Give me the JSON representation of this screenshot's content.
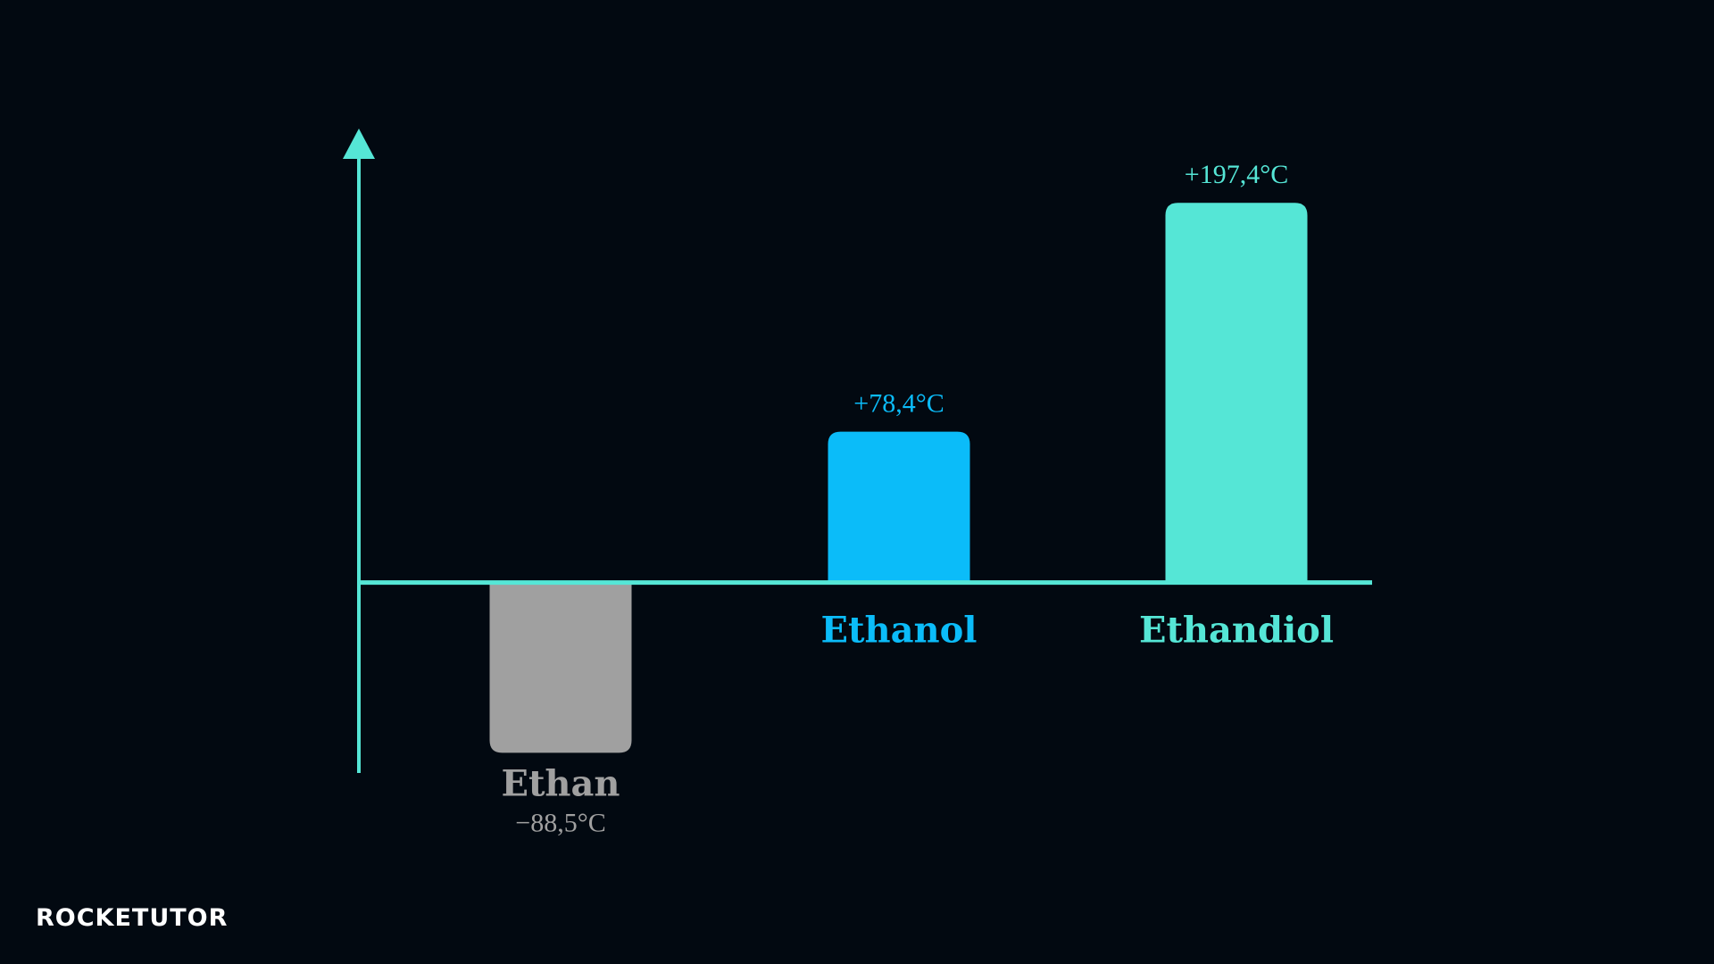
{
  "chart_data": {
    "type": "bar",
    "categories": [
      "Ethan",
      "Ethanol",
      "Ethandiol"
    ],
    "values": [
      -88.5,
      78.4,
      197.4
    ],
    "value_labels": [
      "−88,5°C",
      "+78,4°C",
      "+197,4°C"
    ],
    "colors": [
      "#a0a0a0",
      "#0bbcf9",
      "#55e6d6"
    ],
    "axis_color": "#55e6d6",
    "ylim": [
      -99,
      236
    ]
  },
  "logo": "ROCKETUTOR"
}
